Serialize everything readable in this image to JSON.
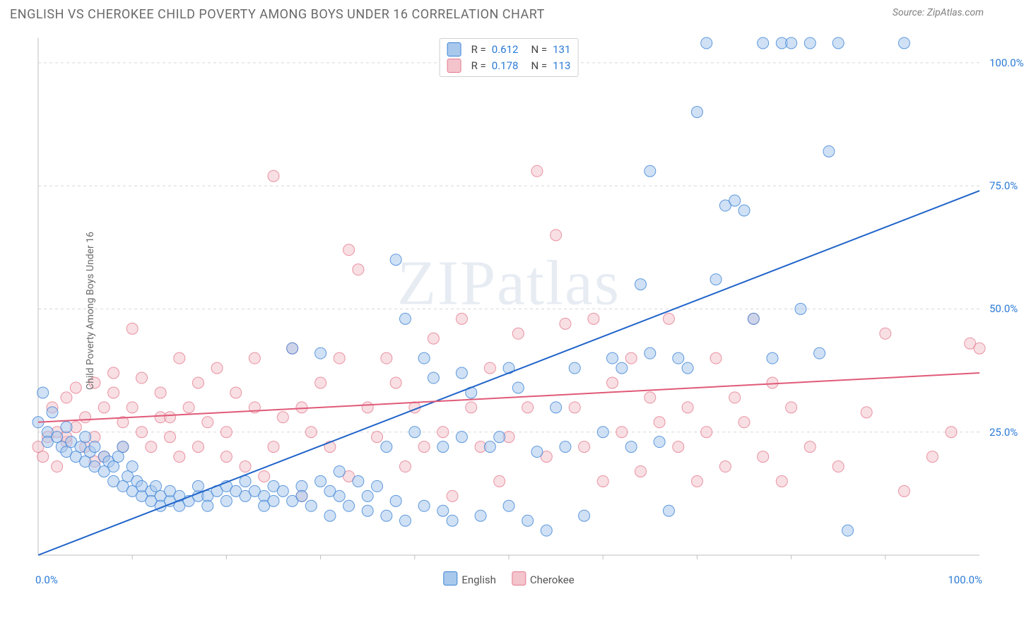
{
  "title": "ENGLISH VS CHEROKEE CHILD POVERTY AMONG BOYS UNDER 16 CORRELATION CHART",
  "source": "Source: ZipAtlas.com",
  "ylabel": "Child Poverty Among Boys Under 16",
  "watermark_a": "ZIP",
  "watermark_b": "atlas",
  "chart": {
    "type": "scatter-with-regression",
    "xlim": [
      0,
      100
    ],
    "ylim": [
      0,
      105
    ],
    "x_ticks_minor_step": 10,
    "y_ticks": [
      25,
      50,
      75,
      100
    ],
    "y_tick_labels": [
      "25.0%",
      "50.0%",
      "75.0%",
      "100.0%"
    ],
    "x_min_label": "0.0%",
    "x_max_label": "100.0%",
    "grid_color": "#d8d8d8",
    "axis_color": "#bfbfbf",
    "background": "#ffffff",
    "marker_radius": 8,
    "marker_opacity": 0.55,
    "series": [
      {
        "name": "English",
        "color_fill": "#a9c9ec",
        "color_stroke": "#3b82d6",
        "r": "0.612",
        "n": "131",
        "reg_line": {
          "x1": 0,
          "y1": 0,
          "x2": 100,
          "y2": 74,
          "color": "#1f63c9",
          "width": 2
        },
        "points": [
          [
            0,
            27
          ],
          [
            0.5,
            33
          ],
          [
            1,
            25
          ],
          [
            1,
            23
          ],
          [
            1.5,
            29
          ],
          [
            2,
            24
          ],
          [
            2.5,
            22
          ],
          [
            3,
            26
          ],
          [
            3,
            21
          ],
          [
            3.5,
            23
          ],
          [
            4,
            20
          ],
          [
            4.5,
            22
          ],
          [
            5,
            24
          ],
          [
            5,
            19
          ],
          [
            5.5,
            21
          ],
          [
            6,
            18
          ],
          [
            6,
            22
          ],
          [
            7,
            20
          ],
          [
            7,
            17
          ],
          [
            7.5,
            19
          ],
          [
            8,
            15
          ],
          [
            8,
            18
          ],
          [
            8.5,
            20
          ],
          [
            9,
            14
          ],
          [
            9,
            22
          ],
          [
            9.5,
            16
          ],
          [
            10,
            13
          ],
          [
            10,
            18
          ],
          [
            10.5,
            15
          ],
          [
            11,
            12
          ],
          [
            11,
            14
          ],
          [
            12,
            13
          ],
          [
            12,
            11
          ],
          [
            12.5,
            14
          ],
          [
            13,
            12
          ],
          [
            13,
            10
          ],
          [
            14,
            11
          ],
          [
            14,
            13
          ],
          [
            15,
            12
          ],
          [
            15,
            10
          ],
          [
            16,
            11
          ],
          [
            17,
            12
          ],
          [
            17,
            14
          ],
          [
            18,
            12
          ],
          [
            18,
            10
          ],
          [
            19,
            13
          ],
          [
            20,
            11
          ],
          [
            20,
            14
          ],
          [
            21,
            13
          ],
          [
            22,
            12
          ],
          [
            22,
            15
          ],
          [
            23,
            13
          ],
          [
            24,
            12
          ],
          [
            24,
            10
          ],
          [
            25,
            14
          ],
          [
            25,
            11
          ],
          [
            26,
            13
          ],
          [
            27,
            11
          ],
          [
            27,
            42
          ],
          [
            28,
            14
          ],
          [
            28,
            12
          ],
          [
            29,
            10
          ],
          [
            30,
            41
          ],
          [
            30,
            15
          ],
          [
            31,
            13
          ],
          [
            31,
            8
          ],
          [
            32,
            17
          ],
          [
            32,
            12
          ],
          [
            33,
            10
          ],
          [
            34,
            15
          ],
          [
            35,
            9
          ],
          [
            35,
            12
          ],
          [
            36,
            14
          ],
          [
            37,
            8
          ],
          [
            37,
            22
          ],
          [
            38,
            60
          ],
          [
            38,
            11
          ],
          [
            39,
            48
          ],
          [
            39,
            7
          ],
          [
            40,
            25
          ],
          [
            41,
            10
          ],
          [
            41,
            40
          ],
          [
            42,
            36
          ],
          [
            43,
            9
          ],
          [
            43,
            22
          ],
          [
            44,
            7
          ],
          [
            45,
            37
          ],
          [
            45,
            24
          ],
          [
            46,
            33
          ],
          [
            47,
            8
          ],
          [
            48,
            22
          ],
          [
            49,
            24
          ],
          [
            50,
            10
          ],
          [
            50,
            38
          ],
          [
            51,
            34
          ],
          [
            52,
            7
          ],
          [
            53,
            21
          ],
          [
            54,
            5
          ],
          [
            55,
            30
          ],
          [
            56,
            22
          ],
          [
            57,
            38
          ],
          [
            58,
            8
          ],
          [
            60,
            25
          ],
          [
            61,
            40
          ],
          [
            62,
            38
          ],
          [
            63,
            22
          ],
          [
            64,
            55
          ],
          [
            65,
            78
          ],
          [
            65,
            41
          ],
          [
            66,
            23
          ],
          [
            67,
            9
          ],
          [
            68,
            40
          ],
          [
            69,
            38
          ],
          [
            70,
            90
          ],
          [
            71,
            104
          ],
          [
            72,
            56
          ],
          [
            73,
            71
          ],
          [
            74,
            72
          ],
          [
            75,
            70
          ],
          [
            76,
            48
          ],
          [
            77,
            104
          ],
          [
            78,
            40
          ],
          [
            79,
            104
          ],
          [
            80,
            104
          ],
          [
            81,
            50
          ],
          [
            82,
            104
          ],
          [
            83,
            41
          ],
          [
            84,
            82
          ],
          [
            85,
            104
          ],
          [
            86,
            5
          ],
          [
            92,
            104
          ]
        ]
      },
      {
        "name": "Cherokee",
        "color_fill": "#f3c4cc",
        "color_stroke": "#e57a8f",
        "r": "0.178",
        "n": "113",
        "reg_line": {
          "x1": 0,
          "y1": 27,
          "x2": 100,
          "y2": 37,
          "color": "#e05a78",
          "width": 2
        },
        "points": [
          [
            0,
            22
          ],
          [
            0.5,
            20
          ],
          [
            1,
            24
          ],
          [
            1.5,
            30
          ],
          [
            2,
            18
          ],
          [
            2,
            25
          ],
          [
            3,
            23
          ],
          [
            3,
            32
          ],
          [
            4,
            26
          ],
          [
            4,
            34
          ],
          [
            5,
            22
          ],
          [
            5,
            28
          ],
          [
            6,
            35
          ],
          [
            6,
            24
          ],
          [
            7,
            30
          ],
          [
            7,
            20
          ],
          [
            8,
            33
          ],
          [
            8,
            37
          ],
          [
            9,
            27
          ],
          [
            9,
            22
          ],
          [
            10,
            46
          ],
          [
            10,
            30
          ],
          [
            11,
            25
          ],
          [
            11,
            36
          ],
          [
            12,
            22
          ],
          [
            13,
            33
          ],
          [
            13,
            28
          ],
          [
            14,
            24
          ],
          [
            15,
            40
          ],
          [
            15,
            20
          ],
          [
            16,
            30
          ],
          [
            17,
            35
          ],
          [
            17,
            22
          ],
          [
            18,
            27
          ],
          [
            19,
            38
          ],
          [
            20,
            25
          ],
          [
            20,
            20
          ],
          [
            21,
            33
          ],
          [
            22,
            18
          ],
          [
            23,
            40
          ],
          [
            23,
            30
          ],
          [
            24,
            16
          ],
          [
            25,
            77
          ],
          [
            25,
            22
          ],
          [
            26,
            28
          ],
          [
            27,
            42
          ],
          [
            28,
            30
          ],
          [
            28,
            12
          ],
          [
            29,
            25
          ],
          [
            30,
            35
          ],
          [
            31,
            22
          ],
          [
            32,
            40
          ],
          [
            33,
            62
          ],
          [
            33,
            16
          ],
          [
            34,
            58
          ],
          [
            35,
            30
          ],
          [
            36,
            24
          ],
          [
            37,
            40
          ],
          [
            38,
            35
          ],
          [
            39,
            18
          ],
          [
            40,
            30
          ],
          [
            41,
            22
          ],
          [
            42,
            44
          ],
          [
            43,
            25
          ],
          [
            44,
            12
          ],
          [
            45,
            48
          ],
          [
            46,
            30
          ],
          [
            47,
            22
          ],
          [
            48,
            38
          ],
          [
            49,
            15
          ],
          [
            50,
            24
          ],
          [
            51,
            45
          ],
          [
            52,
            30
          ],
          [
            53,
            78
          ],
          [
            54,
            20
          ],
          [
            55,
            65
          ],
          [
            56,
            47
          ],
          [
            57,
            30
          ],
          [
            58,
            22
          ],
          [
            59,
            48
          ],
          [
            60,
            15
          ],
          [
            61,
            35
          ],
          [
            62,
            25
          ],
          [
            63,
            40
          ],
          [
            64,
            17
          ],
          [
            65,
            32
          ],
          [
            66,
            27
          ],
          [
            67,
            48
          ],
          [
            68,
            22
          ],
          [
            69,
            30
          ],
          [
            70,
            15
          ],
          [
            71,
            25
          ],
          [
            72,
            40
          ],
          [
            73,
            18
          ],
          [
            74,
            32
          ],
          [
            75,
            27
          ],
          [
            76,
            48
          ],
          [
            77,
            20
          ],
          [
            78,
            35
          ],
          [
            79,
            15
          ],
          [
            80,
            30
          ],
          [
            82,
            22
          ],
          [
            85,
            18
          ],
          [
            88,
            29
          ],
          [
            90,
            45
          ],
          [
            92,
            13
          ],
          [
            95,
            20
          ],
          [
            97,
            25
          ],
          [
            99,
            43
          ],
          [
            100,
            42
          ],
          [
            3,
            24
          ],
          [
            6,
            19
          ],
          [
            14,
            28
          ]
        ]
      }
    ],
    "legend_bottom": [
      {
        "label": "English",
        "fill": "#a9c9ec",
        "stroke": "#3b82d6"
      },
      {
        "label": "Cherokee",
        "fill": "#f3c4cc",
        "stroke": "#e57a8f"
      }
    ]
  }
}
